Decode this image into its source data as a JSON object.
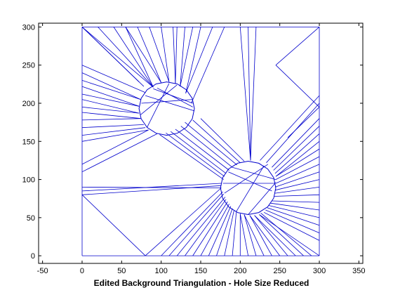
{
  "chart_data": {
    "type": "mesh",
    "title": "Edited Background Triangulation - Hole Size Reduced",
    "xlabel": "",
    "ylabel": "",
    "xlim": [
      -55,
      355
    ],
    "ylim": [
      -10,
      305
    ],
    "xticks": [
      -50,
      0,
      50,
      100,
      150,
      200,
      250,
      300,
      350
    ],
    "yticks": [
      0,
      50,
      100,
      150,
      200,
      250,
      300
    ],
    "grid": false,
    "line_color": "#0000cc",
    "domain": {
      "xmin": 0,
      "xmax": 300,
      "ymin": 0,
      "ymax": 300
    },
    "holes": [
      {
        "cx": 107,
        "cy": 193,
        "r": 35
      },
      {
        "cx": 210,
        "cy": 89,
        "r": 35
      }
    ],
    "segments": [
      [
        0,
        300,
        300,
        300
      ],
      [
        300,
        300,
        300,
        0
      ],
      [
        300,
        0,
        0,
        0
      ],
      [
        0,
        0,
        0,
        300
      ],
      [
        0,
        300,
        72,
        228
      ],
      [
        0,
        300,
        78,
        222
      ],
      [
        0,
        300,
        90,
        221
      ],
      [
        20,
        300,
        90,
        221
      ],
      [
        40,
        300,
        90,
        221
      ],
      [
        55,
        300,
        90,
        221
      ],
      [
        55,
        300,
        100,
        227
      ],
      [
        70,
        300,
        100,
        227
      ],
      [
        85,
        300,
        110,
        228
      ],
      [
        100,
        300,
        110,
        228
      ],
      [
        115,
        300,
        118,
        226
      ],
      [
        120,
        300,
        118,
        226
      ],
      [
        130,
        300,
        124,
        222
      ],
      [
        140,
        300,
        124,
        222
      ],
      [
        150,
        300,
        131,
        213
      ],
      [
        165,
        300,
        131,
        213
      ],
      [
        180,
        300,
        138,
        200
      ],
      [
        0,
        250,
        80,
        214
      ],
      [
        0,
        240,
        74,
        205
      ],
      [
        0,
        230,
        74,
        205
      ],
      [
        0,
        222,
        72,
        196
      ],
      [
        0,
        212,
        72,
        196
      ],
      [
        0,
        205,
        72,
        187
      ],
      [
        0,
        195,
        72,
        187
      ],
      [
        0,
        188,
        74,
        180
      ],
      [
        0,
        178,
        74,
        180
      ],
      [
        0,
        168,
        78,
        172
      ],
      [
        0,
        158,
        80,
        168
      ],
      [
        0,
        150,
        84,
        165
      ],
      [
        0,
        120,
        84,
        165
      ],
      [
        0,
        110,
        95,
        160
      ],
      [
        210,
        300,
        213,
        125
      ],
      [
        220,
        300,
        213,
        125
      ],
      [
        200,
        300,
        213,
        125
      ],
      [
        300,
        300,
        245,
        250
      ],
      [
        245,
        250,
        300,
        195
      ],
      [
        300,
        195,
        260,
        155
      ],
      [
        300,
        210,
        225,
        125
      ],
      [
        300,
        200,
        233,
        122
      ],
      [
        300,
        180,
        240,
        116
      ],
      [
        300,
        170,
        242,
        112
      ],
      [
        300,
        160,
        244,
        108
      ],
      [
        300,
        150,
        245,
        104
      ],
      [
        300,
        140,
        245,
        104
      ],
      [
        300,
        130,
        245,
        100
      ],
      [
        300,
        120,
        245,
        95
      ],
      [
        300,
        110,
        244,
        90
      ],
      [
        300,
        100,
        244,
        86
      ],
      [
        300,
        90,
        244,
        82
      ],
      [
        300,
        80,
        243,
        78
      ],
      [
        300,
        70,
        240,
        72
      ],
      [
        300,
        60,
        238,
        69
      ],
      [
        300,
        50,
        236,
        66
      ],
      [
        300,
        40,
        234,
        63
      ],
      [
        300,
        30,
        232,
        60
      ],
      [
        300,
        20,
        230,
        57
      ],
      [
        300,
        0,
        224,
        54
      ],
      [
        290,
        0,
        226,
        56
      ],
      [
        280,
        0,
        224,
        54
      ],
      [
        270,
        0,
        218,
        53
      ],
      [
        260,
        0,
        218,
        53
      ],
      [
        250,
        0,
        212,
        53
      ],
      [
        240,
        0,
        212,
        53
      ],
      [
        230,
        0,
        205,
        54
      ],
      [
        220,
        0,
        205,
        54
      ],
      [
        210,
        0,
        200,
        55
      ],
      [
        200,
        0,
        200,
        55
      ],
      [
        190,
        0,
        195,
        57
      ],
      [
        180,
        0,
        192,
        59
      ],
      [
        170,
        0,
        190,
        62
      ],
      [
        160,
        0,
        188,
        65
      ],
      [
        150,
        0,
        186,
        68
      ],
      [
        140,
        0,
        184,
        71
      ],
      [
        130,
        0,
        182,
        74
      ],
      [
        120,
        0,
        181,
        77
      ],
      [
        110,
        0,
        179,
        81
      ],
      [
        100,
        0,
        178,
        84
      ],
      [
        80,
        0,
        0,
        80
      ],
      [
        80,
        0,
        176,
        89
      ],
      [
        0,
        90,
        176,
        89
      ],
      [
        0,
        80,
        176,
        92
      ],
      [
        0,
        85,
        176,
        95
      ],
      [
        130,
        175,
        196,
        119
      ],
      [
        140,
        178,
        200,
        122
      ],
      [
        150,
        180,
        205,
        124
      ],
      [
        125,
        170,
        190,
        116
      ],
      [
        118,
        166,
        186,
        112
      ],
      [
        112,
        163,
        182,
        108
      ],
      [
        106,
        161,
        180,
        104
      ],
      [
        98,
        159,
        179,
        100
      ],
      [
        75,
        200,
        140,
        205
      ],
      [
        80,
        210,
        142,
        190
      ],
      [
        90,
        219,
        140,
        200
      ],
      [
        74,
        185,
        120,
        224
      ],
      [
        110,
        226,
        82,
        168
      ],
      [
        95,
        220,
        140,
        195
      ],
      [
        178,
        95,
        244,
        95
      ],
      [
        185,
        110,
        240,
        85
      ],
      [
        190,
        116,
        245,
        100
      ],
      [
        180,
        82,
        235,
        120
      ],
      [
        195,
        58,
        230,
        118
      ],
      [
        210,
        54,
        245,
        96
      ]
    ]
  }
}
